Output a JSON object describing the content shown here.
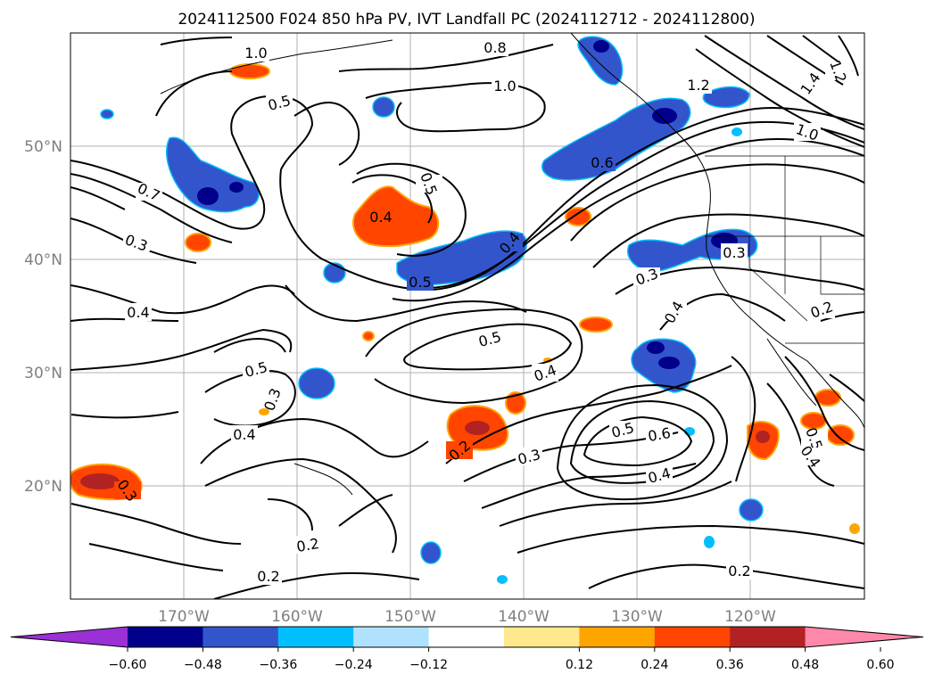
{
  "title": "2024112500 F024 850 hPa PV, IVT Landfall PC (2024112712 - 2024112800)",
  "map": {
    "lon_labels": [
      "170°W",
      "160°W",
      "150°W",
      "140°W",
      "130°W",
      "120°W"
    ],
    "lat_labels": [
      "50°N",
      "40°N",
      "30°N",
      "20°N"
    ],
    "gridlines": true
  },
  "colorbar": {
    "ticks": [
      "−0.60",
      "−0.48",
      "−0.36",
      "−0.24",
      "−0.12",
      "0.12",
      "0.24",
      "0.36",
      "0.48",
      "0.60"
    ],
    "colors": [
      "#9b30d6",
      "#00008b",
      "#3355cc",
      "#00bfff",
      "#b0e2ff",
      "#ffffff",
      "#ffe98c",
      "#ffa500",
      "#ff4500",
      "#b22222",
      "#ff88aa"
    ],
    "extend": "both"
  },
  "contour_labels": [
    "1.0",
    "0.8",
    "1.0",
    "1.2",
    "1.4",
    "1.2",
    "1.0",
    "0.5",
    "0.7",
    "0.3",
    "0.4",
    "0.5",
    "0.4",
    "0.6",
    "0.4",
    "0.5",
    "0.3",
    "0.3",
    "0.4",
    "0.2",
    "0.5",
    "0.4",
    "0.5",
    "0.3",
    "0.4",
    "0.2",
    "0.3",
    "0.5",
    "0.6",
    "0.4",
    "0.5",
    "0.4",
    "0.3",
    "0.2",
    "0.2",
    "0.2"
  ]
}
